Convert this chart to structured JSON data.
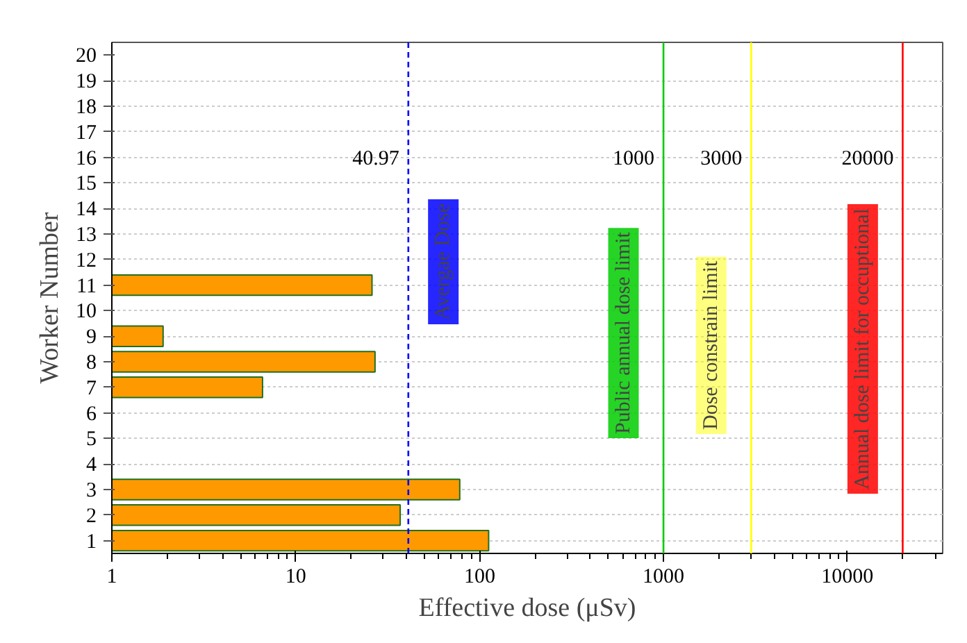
{
  "chart_data": {
    "type": "bar",
    "orientation": "horizontal",
    "xlabel": "Effective dose (μSv)",
    "ylabel": "Worker Number",
    "categories": [
      "20",
      "19",
      "18",
      "17",
      "16",
      "15",
      "14",
      "13",
      "12",
      "11",
      "10",
      "9",
      "8",
      "7",
      "6",
      "5",
      "4",
      "3",
      "2",
      "1"
    ],
    "values": [
      null,
      null,
      null,
      null,
      null,
      null,
      null,
      null,
      null,
      26,
      null,
      1.9,
      27,
      6.6,
      null,
      null,
      null,
      78,
      37,
      112
    ],
    "color": "#ff9900",
    "annotations": [
      {
        "text": "40.97",
        "x": 40.97,
        "y": "16"
      },
      {
        "text": "1000",
        "x": 1000,
        "y": "16"
      },
      {
        "text": "3000",
        "x": 3000,
        "y": "16"
      },
      {
        "text": "20000",
        "x": 20000,
        "y": "16"
      }
    ],
    "log": "x",
    "xlim": [
      1,
      33000
    ],
    "xticks": [
      1,
      10,
      100,
      1000,
      10000
    ],
    "grid": "y",
    "ref_lines": [
      {
        "axis": "x",
        "value": 40.97,
        "label": "Avergae Dose",
        "color": "#0000ff",
        "line_style": "dashed"
      },
      {
        "axis": "x",
        "value": 1000,
        "label": "Public annual dose limit",
        "color": "#00cc00",
        "line_style": "solid"
      },
      {
        "axis": "x",
        "value": 3000,
        "label": "Dose constrain limit",
        "color": "#ffff00",
        "line_style": "solid"
      },
      {
        "axis": "x",
        "value": 20000,
        "label": "Annual dose limit for occuptional",
        "color": "#ff0000",
        "line_style": "solid"
      }
    ]
  }
}
